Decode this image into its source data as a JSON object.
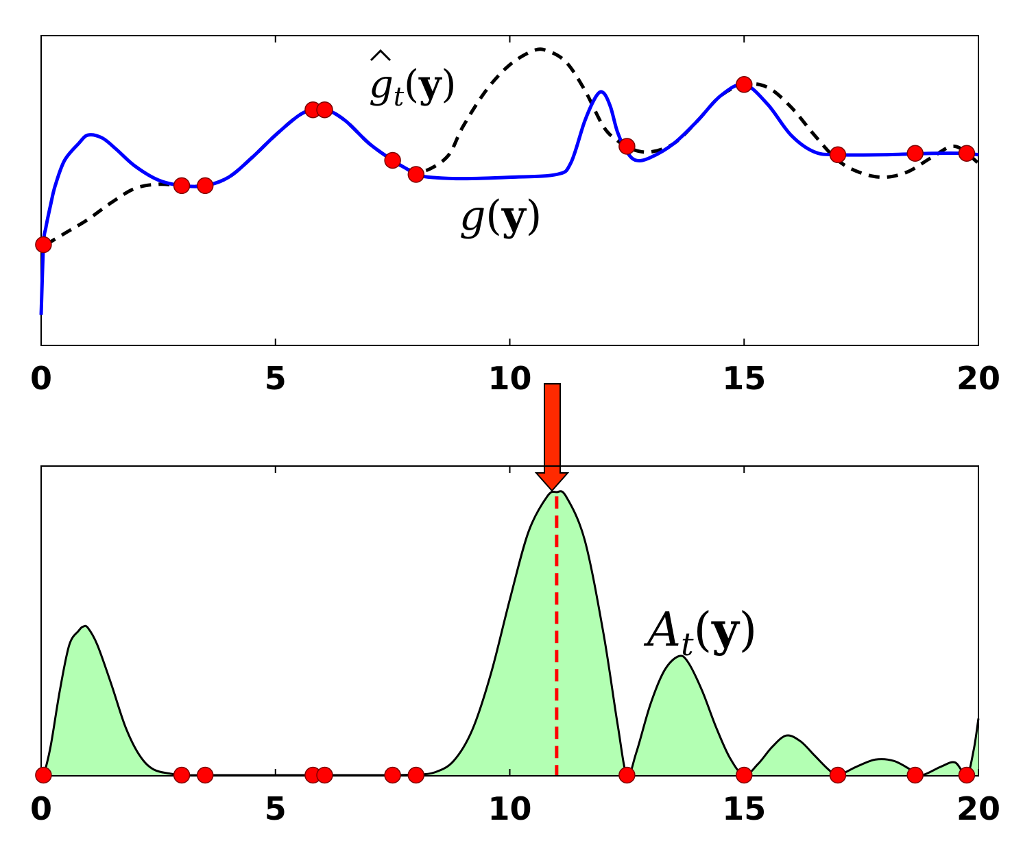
{
  "colors": {
    "g_line": "#0000ff",
    "g_hat_line": "#000000",
    "marker": "#ff0000",
    "acq_fill": "#b3ffb3",
    "acq_line": "#000000",
    "arrow": "#ff2a00",
    "argmax_line": "#ff0000"
  },
  "chart_data": [
    {
      "type": "line",
      "panel": "top",
      "xlim": [
        0,
        20
      ],
      "ylim": [
        0,
        1
      ],
      "x_ticks": [
        0,
        5,
        10,
        15,
        20
      ],
      "x_tick_labels": [
        "0",
        "5",
        "10",
        "15",
        "20"
      ],
      "grid": false,
      "annotations": {
        "g_hat": {
          "base": "g",
          "sub": "t",
          "arg": "y",
          "text": "ĝt(y)"
        },
        "g": {
          "base": "g",
          "arg": "y",
          "text": "g(y)"
        }
      },
      "series": [
        {
          "id": "g",
          "style": "solid",
          "x": [
            0,
            0.05,
            0.1,
            0.2,
            0.3,
            0.5,
            0.8,
            1.0,
            1.3,
            1.6,
            2.0,
            2.5,
            3.0,
            3.5,
            4.0,
            4.5,
            5.0,
            5.5,
            5.8,
            6.1,
            6.5,
            7.0,
            7.5,
            7.8,
            8.0,
            8.3,
            9.0,
            10.0,
            11.0,
            11.3,
            11.6,
            11.85,
            12.0,
            12.15,
            12.3,
            12.5,
            12.7,
            13.0,
            13.5,
            14.0,
            14.5,
            15.0,
            15.5,
            16.0,
            16.5,
            17.0,
            18.0,
            19.0,
            19.7,
            20.0
          ],
          "y": [
            0.05,
            0.3,
            0.36,
            0.44,
            0.51,
            0.6,
            0.66,
            0.69,
            0.68,
            0.64,
            0.58,
            0.53,
            0.51,
            0.51,
            0.54,
            0.61,
            0.69,
            0.76,
            0.78,
            0.78,
            0.74,
            0.66,
            0.6,
            0.57,
            0.55,
            0.54,
            0.535,
            0.54,
            0.55,
            0.59,
            0.74,
            0.83,
            0.84,
            0.79,
            0.7,
            0.63,
            0.6,
            0.61,
            0.66,
            0.74,
            0.83,
            0.87,
            0.8,
            0.69,
            0.63,
            0.62,
            0.62,
            0.625,
            0.625,
            0.62
          ]
        },
        {
          "id": "g_hat",
          "style": "dashed",
          "x": [
            0.1,
            0.5,
            1.0,
            1.5,
            2.0,
            2.5,
            3.0,
            3.5,
            4.0,
            4.5,
            5.0,
            5.5,
            5.8,
            6.1,
            6.5,
            7.0,
            7.5,
            7.8,
            8.0,
            8.3,
            8.7,
            9.0,
            9.5,
            10.0,
            10.5,
            10.8,
            11.2,
            11.6,
            12.0,
            12.3,
            12.6,
            13.0,
            13.5,
            14.0,
            14.5,
            15.0,
            15.5,
            16.0,
            16.5,
            17.0,
            17.5,
            18.0,
            18.5,
            19.0,
            19.5,
            20.0
          ],
          "y": [
            0.3,
            0.34,
            0.39,
            0.45,
            0.5,
            0.515,
            0.51,
            0.51,
            0.54,
            0.61,
            0.69,
            0.76,
            0.78,
            0.78,
            0.74,
            0.66,
            0.6,
            0.57,
            0.56,
            0.57,
            0.62,
            0.72,
            0.85,
            0.94,
            0.99,
            0.99,
            0.95,
            0.85,
            0.72,
            0.67,
            0.64,
            0.63,
            0.66,
            0.74,
            0.83,
            0.87,
            0.86,
            0.79,
            0.69,
            0.6,
            0.555,
            0.54,
            0.56,
            0.61,
            0.65,
            0.59
          ]
        }
      ],
      "points": {
        "x": [
          0.05,
          3.0,
          3.5,
          5.8,
          6.05,
          7.5,
          8.0,
          12.5,
          15.0,
          17.0,
          18.65,
          19.75
        ],
        "y": [
          0.3,
          0.51,
          0.51,
          0.78,
          0.78,
          0.6,
          0.55,
          0.65,
          0.87,
          0.62,
          0.625,
          0.625
        ]
      }
    },
    {
      "type": "area",
      "panel": "bottom",
      "xlim": [
        0,
        20
      ],
      "ylim": [
        0,
        1
      ],
      "x_ticks": [
        0,
        5,
        10,
        15,
        20
      ],
      "x_tick_labels": [
        "0",
        "5",
        "10",
        "15",
        "20"
      ],
      "grid": false,
      "annotations": {
        "acq": {
          "base": "A",
          "sub": "t",
          "arg": "y",
          "text": "At(y)"
        },
        "argmax_x": 11.0
      },
      "series": [
        {
          "id": "A",
          "x": [
            0,
            0.05,
            0.2,
            0.4,
            0.6,
            0.8,
            0.9,
            1.0,
            1.2,
            1.5,
            1.8,
            2.1,
            2.4,
            2.8,
            3.0,
            3.5,
            5.0,
            6.0,
            7.5,
            8.0,
            8.4,
            8.8,
            9.2,
            9.6,
            10.0,
            10.4,
            10.8,
            11.0,
            11.2,
            11.6,
            12.0,
            12.3,
            12.5,
            12.7,
            13.0,
            13.3,
            13.6,
            13.8,
            14.1,
            14.4,
            14.7,
            15.0,
            15.3,
            15.6,
            15.9,
            16.2,
            16.5,
            16.8,
            17.0,
            17.4,
            17.8,
            18.2,
            18.6,
            18.8,
            19.2,
            19.5,
            19.75,
            19.9,
            20.0
          ],
          "y": [
            0.0,
            0.0,
            0.1,
            0.3,
            0.46,
            0.51,
            0.525,
            0.52,
            0.46,
            0.32,
            0.17,
            0.07,
            0.02,
            0.004,
            0.0,
            0.0,
            0.0,
            0.0,
            0.0,
            0.002,
            0.01,
            0.05,
            0.16,
            0.36,
            0.62,
            0.86,
            0.985,
            1.0,
            0.985,
            0.83,
            0.5,
            0.18,
            0.0,
            0.08,
            0.25,
            0.37,
            0.42,
            0.4,
            0.3,
            0.17,
            0.06,
            0.0,
            0.04,
            0.1,
            0.14,
            0.12,
            0.07,
            0.02,
            0.0,
            0.03,
            0.055,
            0.05,
            0.015,
            0.0,
            0.03,
            0.045,
            0.0,
            0.09,
            0.2
          ]
        }
      ],
      "points": {
        "x": [
          0.05,
          3.0,
          3.5,
          5.8,
          6.05,
          7.5,
          8.0,
          12.5,
          15.0,
          17.0,
          18.65,
          19.75
        ],
        "y": [
          0,
          0,
          0,
          0,
          0,
          0,
          0,
          0,
          0,
          0,
          0,
          0
        ]
      }
    }
  ]
}
